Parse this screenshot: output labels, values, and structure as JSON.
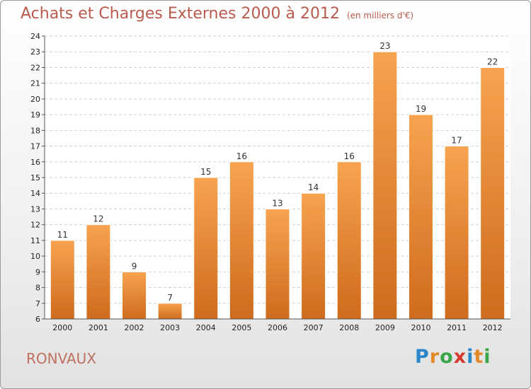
{
  "header": {
    "title": "Achats et Charges Externes 2000 à 2012",
    "unit": "(en milliers d'€)"
  },
  "footer": {
    "location": "RONVAUX"
  },
  "logo": {
    "letters": [
      "P",
      "r",
      "o",
      "x",
      "i",
      "t",
      "i"
    ],
    "colors": [
      "#2b86c9",
      "#e2892a",
      "#3aa64a",
      "#d63a2f",
      "#2b86c9",
      "#e2892a",
      "#3aa64a"
    ]
  },
  "chart_data": {
    "type": "bar",
    "categories": [
      "2000",
      "2001",
      "2002",
      "2003",
      "2004",
      "2005",
      "2006",
      "2007",
      "2008",
      "2009",
      "2010",
      "2011",
      "2012"
    ],
    "values": [
      11,
      12,
      9,
      7,
      15,
      16,
      13,
      14,
      16,
      23,
      19,
      17,
      22
    ],
    "ylim": [
      6,
      24
    ],
    "yticks": [
      6,
      7,
      8,
      9,
      10,
      11,
      12,
      13,
      14,
      15,
      16,
      17,
      18,
      19,
      20,
      21,
      22,
      23,
      24
    ],
    "grid": true,
    "bar_color": "#e5882e",
    "data_labels": true
  }
}
